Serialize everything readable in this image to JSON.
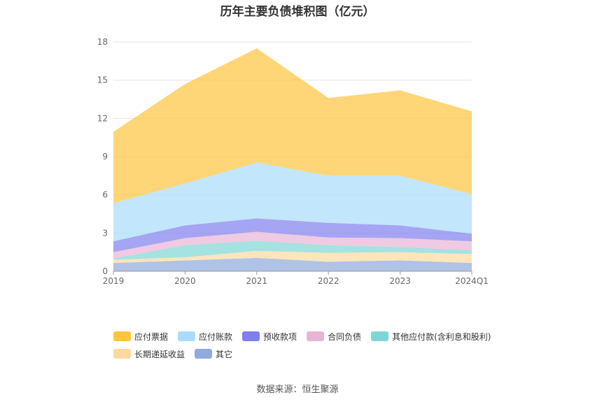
{
  "title": "历年主要负债堆积图（亿元）",
  "source": "数据来源：恒生聚源",
  "chart_data": {
    "type": "area",
    "stacked": true,
    "title": "历年主要负债堆积图（亿元）",
    "categories": [
      "2019",
      "2020",
      "2021",
      "2022",
      "2023",
      "2024Q1"
    ],
    "ylim": [
      0,
      18
    ],
    "yticks": [
      0,
      3,
      6,
      9,
      12,
      15,
      18
    ],
    "grid": true,
    "legend_position": "bottom",
    "series": [
      {
        "name": "其它",
        "color": "#8FAADC",
        "values": [
          0.65,
          0.85,
          1.05,
          0.75,
          0.85,
          0.65
        ]
      },
      {
        "name": "长期递延收益",
        "color": "#FFD8A0",
        "values": [
          0.25,
          0.25,
          0.55,
          0.7,
          0.65,
          0.7
        ]
      },
      {
        "name": "其他应付款(含利息和股利)",
        "color": "#7FD6D6",
        "values": [
          0.1,
          0.95,
          0.8,
          0.6,
          0.4,
          0.3
        ]
      },
      {
        "name": "合同负债",
        "color": "#E8B4D6",
        "values": [
          0.5,
          0.55,
          0.7,
          0.6,
          0.7,
          0.7
        ]
      },
      {
        "name": "预收款项",
        "color": "#7F7FF0",
        "values": [
          0.85,
          1.0,
          1.05,
          1.15,
          1.0,
          0.6
        ]
      },
      {
        "name": "应付账款",
        "color": "#A8DCFA",
        "values": [
          3.0,
          3.3,
          4.4,
          3.7,
          3.9,
          3.1
        ]
      },
      {
        "name": "应付票据",
        "color": "#FFC53D",
        "values": [
          5.6,
          7.8,
          8.95,
          6.1,
          6.7,
          6.5
        ]
      }
    ]
  },
  "legend_order": [
    "应付票据",
    "应付账款",
    "预收款项",
    "合同负债",
    "其他应付款(含利息和股利)",
    "长期递延收益",
    "其它"
  ]
}
